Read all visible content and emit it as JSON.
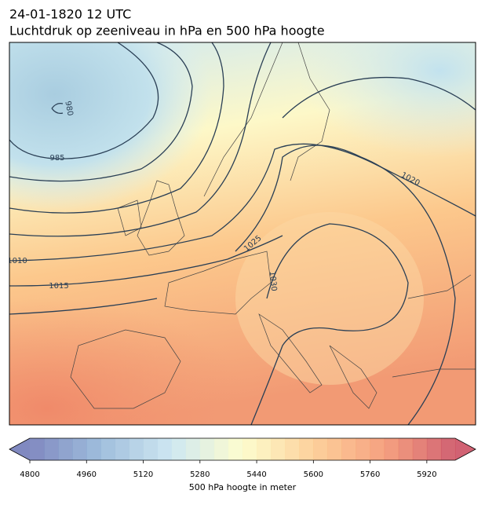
{
  "title": "24-01-1820 12 UTC",
  "subtitle": "Luchtdruk op zeeniveau in hPa en 500 hPa hoogte",
  "isobar_labels": [
    "980",
    "985",
    "1010",
    "1015",
    "1020",
    "1025",
    "1030"
  ],
  "colorbar": {
    "lim": [
      4800,
      6000
    ],
    "step": 40,
    "ticks": [
      4800,
      4960,
      5120,
      5280,
      5440,
      5600,
      5760,
      5920
    ],
    "colormap": [
      "#6a74b5",
      "#8fb3d6",
      "#c6e3ef",
      "#fdfcc6",
      "#fdc98a",
      "#f4916a",
      "#c9475a"
    ],
    "label": "500 hPa hoogte in meter"
  }
}
